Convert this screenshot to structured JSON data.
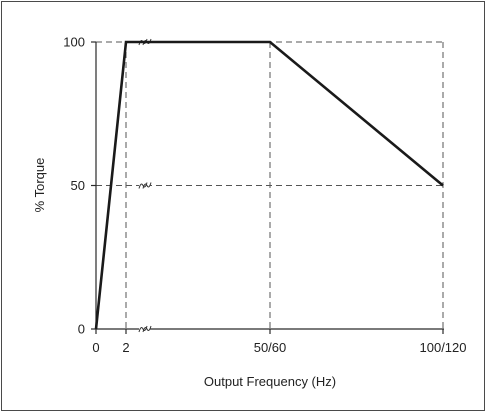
{
  "chart_data": {
    "type": "line",
    "title": "",
    "xlabel": "Output Frequency (Hz)",
    "ylabel": "% Torque",
    "x_categories": [
      "0",
      "2",
      "50/60",
      "100/120"
    ],
    "y_ticks": [
      "0",
      "50",
      "100"
    ],
    "series": [
      {
        "points": [
          {
            "x": "0",
            "y": 0
          },
          {
            "x": "2",
            "y": 100
          },
          {
            "x": "50/60",
            "y": 100
          },
          {
            "x": "100/120",
            "y": 50
          }
        ]
      }
    ],
    "ylim": [
      0,
      100
    ],
    "axis_breaks": true,
    "grid": "dashed reference lines",
    "line_color": "#1a1a1a"
  }
}
